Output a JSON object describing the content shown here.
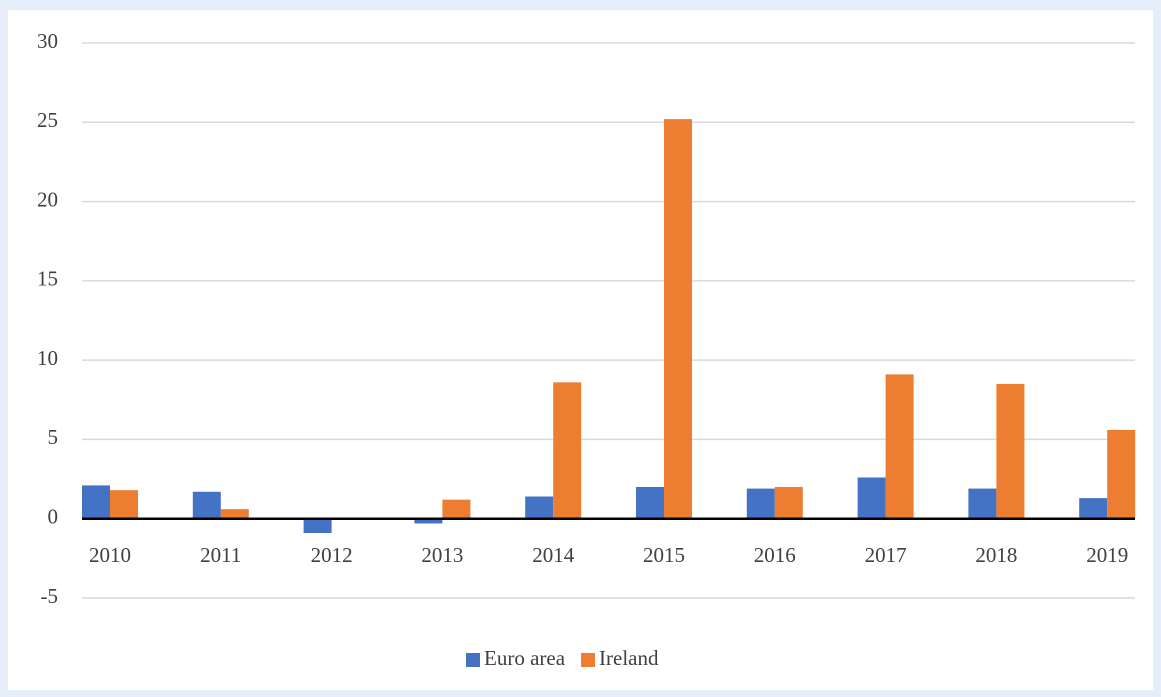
{
  "chart_data": {
    "type": "bar",
    "categories": [
      "2010",
      "2011",
      "2012",
      "2013",
      "2014",
      "2015",
      "2016",
      "2017",
      "2018",
      "2019"
    ],
    "series": [
      {
        "name": "Euro area",
        "color": "#4472c4",
        "values": [
          2.1,
          1.7,
          -0.9,
          -0.3,
          1.4,
          2.0,
          1.9,
          2.6,
          1.9,
          1.3
        ]
      },
      {
        "name": "Ireland",
        "color": "#ed7d31",
        "values": [
          1.8,
          0.6,
          0,
          1.2,
          8.6,
          25.2,
          2.0,
          9.1,
          8.5,
          5.6
        ]
      }
    ],
    "ylim": [
      -5,
      30
    ],
    "yticks": [
      -5,
      0,
      5,
      10,
      15,
      20,
      25,
      30
    ],
    "grid": true,
    "legend": "bottom"
  }
}
